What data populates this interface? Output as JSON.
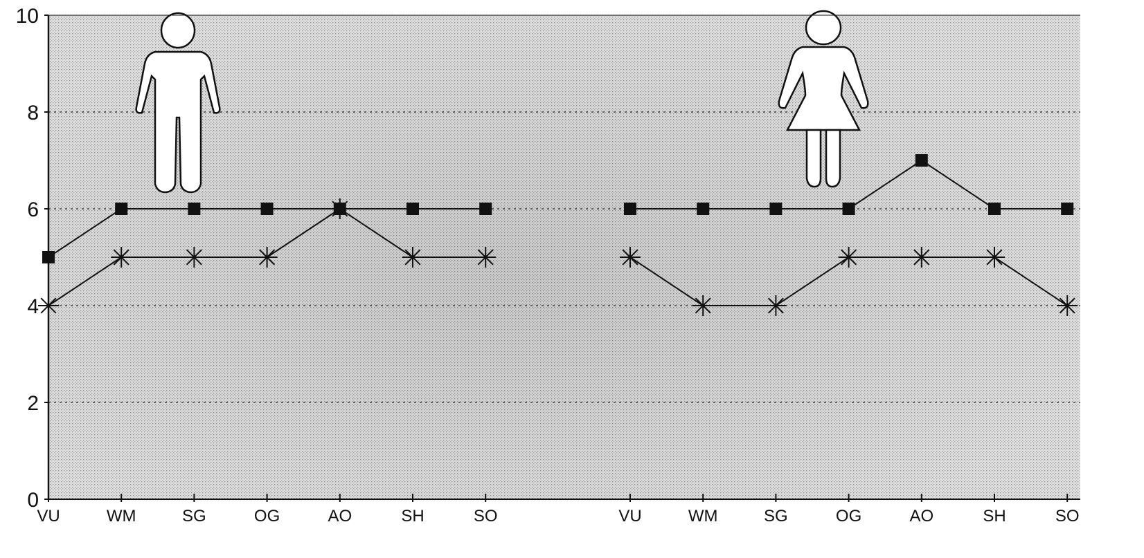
{
  "chart_data": {
    "type": "line",
    "title": "",
    "xlabel": "",
    "ylabel": "",
    "ylim": [
      0,
      10
    ],
    "yticks": [
      0,
      2,
      4,
      6,
      8,
      10
    ],
    "grid": true,
    "background": "stippled gray",
    "groups": [
      {
        "icon": "man-icon",
        "categories": [
          "VU",
          "WM",
          "SG",
          "OG",
          "AO",
          "SH",
          "SO"
        ],
        "series": [
          {
            "marker": "filled-square",
            "values": [
              5,
              6,
              6,
              6,
              6,
              6,
              6
            ]
          },
          {
            "marker": "asterisk",
            "values": [
              4,
              5,
              5,
              5,
              6,
              5,
              5
            ]
          }
        ]
      },
      {
        "icon": "woman-icon",
        "categories": [
          "VU",
          "WM",
          "SG",
          "OG",
          "AO",
          "SH",
          "SO"
        ],
        "series": [
          {
            "marker": "filled-square",
            "values": [
              6,
              6,
              6,
              6,
              7,
              6,
              6
            ]
          },
          {
            "marker": "asterisk",
            "values": [
              5,
              4,
              4,
              5,
              5,
              5,
              4
            ]
          }
        ]
      }
    ]
  },
  "colors": {
    "plot_background": "#d9d9d9",
    "line": "#111111",
    "grid": "#222222"
  }
}
